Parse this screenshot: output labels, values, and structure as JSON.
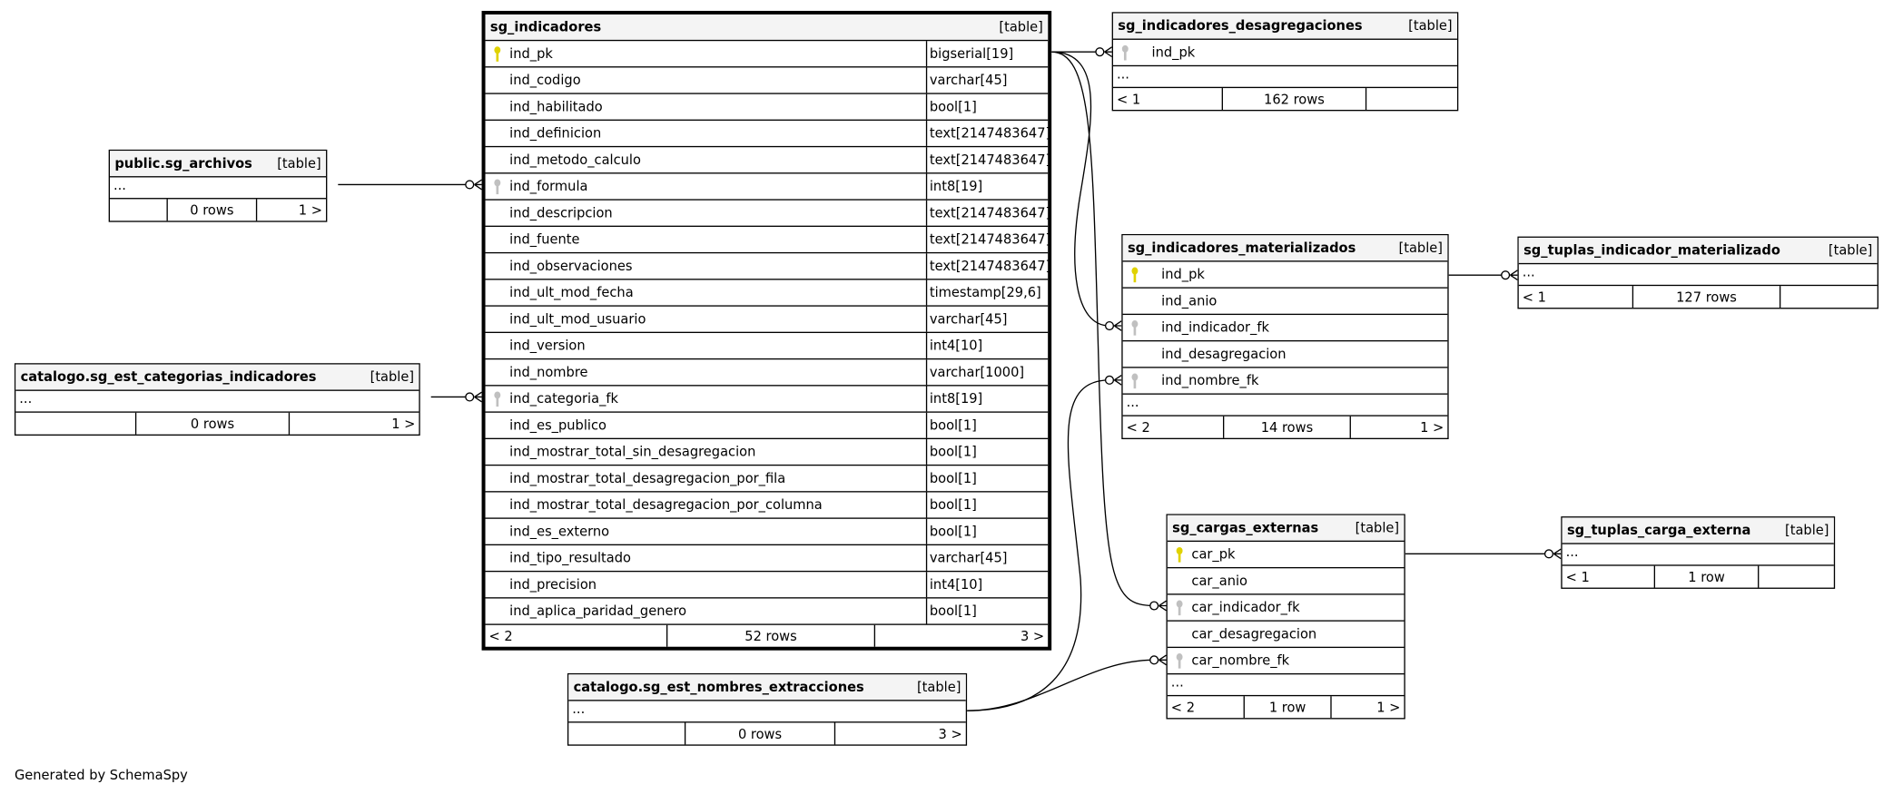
{
  "colors": {
    "pk_key": "#e0d200",
    "fk_key": "#c0c0c0",
    "header_bg": "#f4f4f4"
  },
  "footer_text": "Generated by SchemaSpy",
  "tables": [
    {
      "name": "sg_indicadores",
      "type": "[table]",
      "main": true,
      "columns": [
        {
          "name": "ind_pk",
          "type": "bigserial[19]",
          "key": "pk"
        },
        {
          "name": "ind_codigo",
          "type": "varchar[45]"
        },
        {
          "name": "ind_habilitado",
          "type": "bool[1]"
        },
        {
          "name": "ind_definicion",
          "type": "text[2147483647]"
        },
        {
          "name": "ind_metodo_calculo",
          "type": "text[2147483647]"
        },
        {
          "name": "ind_formula",
          "type": "int8[19]",
          "key": "fk"
        },
        {
          "name": "ind_descripcion",
          "type": "text[2147483647]"
        },
        {
          "name": "ind_fuente",
          "type": "text[2147483647]"
        },
        {
          "name": "ind_observaciones",
          "type": "text[2147483647]"
        },
        {
          "name": "ind_ult_mod_fecha",
          "type": "timestamp[29,6]"
        },
        {
          "name": "ind_ult_mod_usuario",
          "type": "varchar[45]"
        },
        {
          "name": "ind_version",
          "type": "int4[10]"
        },
        {
          "name": "ind_nombre",
          "type": "varchar[1000]"
        },
        {
          "name": "ind_categoria_fk",
          "type": "int8[19]",
          "key": "fk"
        },
        {
          "name": "ind_es_publico",
          "type": "bool[1]"
        },
        {
          "name": "ind_mostrar_total_sin_desagregacion",
          "type": "bool[1]"
        },
        {
          "name": "ind_mostrar_total_desagregacion_por_fila",
          "type": "bool[1]"
        },
        {
          "name": "ind_mostrar_total_desagregacion_por_columna",
          "type": "bool[1]"
        },
        {
          "name": "ind_es_externo",
          "type": "bool[1]"
        },
        {
          "name": "ind_tipo_resultado",
          "type": "varchar[45]"
        },
        {
          "name": "ind_precision",
          "type": "int4[10]"
        },
        {
          "name": "ind_aplica_paridad_genero",
          "type": "bool[1]"
        }
      ],
      "more": "",
      "footer": [
        "< 2",
        "52 rows",
        "3 >"
      ]
    },
    {
      "name": "public.sg_archivos",
      "type": "[table]",
      "columns": [],
      "more": "...",
      "footer": [
        "",
        "0 rows",
        "1 >"
      ]
    },
    {
      "name": "catalogo.sg_est_categorias_indicadores",
      "type": "[table]",
      "columns": [],
      "more": "...",
      "footer": [
        "",
        "0 rows",
        "1 >"
      ]
    },
    {
      "name": "sg_indicadores_desagregaciones",
      "type": "[table]",
      "columns": [
        {
          "name": "ind_pk",
          "key": "fk"
        }
      ],
      "more": "...",
      "footer": [
        "< 1",
        "162 rows",
        ""
      ]
    },
    {
      "name": "sg_indicadores_materializados",
      "type": "[table]",
      "columns": [
        {
          "name": "ind_pk",
          "key": "pk"
        },
        {
          "name": "ind_anio"
        },
        {
          "name": "ind_indicador_fk",
          "key": "fk"
        },
        {
          "name": "ind_desagregacion"
        },
        {
          "name": "ind_nombre_fk",
          "key": "fk"
        }
      ],
      "more": "...",
      "footer": [
        "< 2",
        "14 rows",
        "1 >"
      ]
    },
    {
      "name": "sg_tuplas_indicador_materializado",
      "type": "[table]",
      "columns": [],
      "more": "...",
      "footer": [
        "< 1",
        "127 rows",
        ""
      ]
    },
    {
      "name": "sg_cargas_externas",
      "type": "[table]",
      "columns": [
        {
          "name": "car_pk",
          "key": "pk"
        },
        {
          "name": "car_anio"
        },
        {
          "name": "car_indicador_fk",
          "key": "fk"
        },
        {
          "name": "car_desagregacion"
        },
        {
          "name": "car_nombre_fk",
          "key": "fk"
        }
      ],
      "more": "...",
      "footer": [
        "< 2",
        "1 row",
        "1 >"
      ]
    },
    {
      "name": "sg_tuplas_carga_externa",
      "type": "[table]",
      "columns": [],
      "more": "...",
      "footer": [
        "< 1",
        "1 row",
        ""
      ]
    },
    {
      "name": "catalogo.sg_est_nombres_extracciones",
      "type": "[table]",
      "columns": [],
      "more": "...",
      "footer": [
        "",
        "0 rows",
        "3 >"
      ]
    }
  ]
}
